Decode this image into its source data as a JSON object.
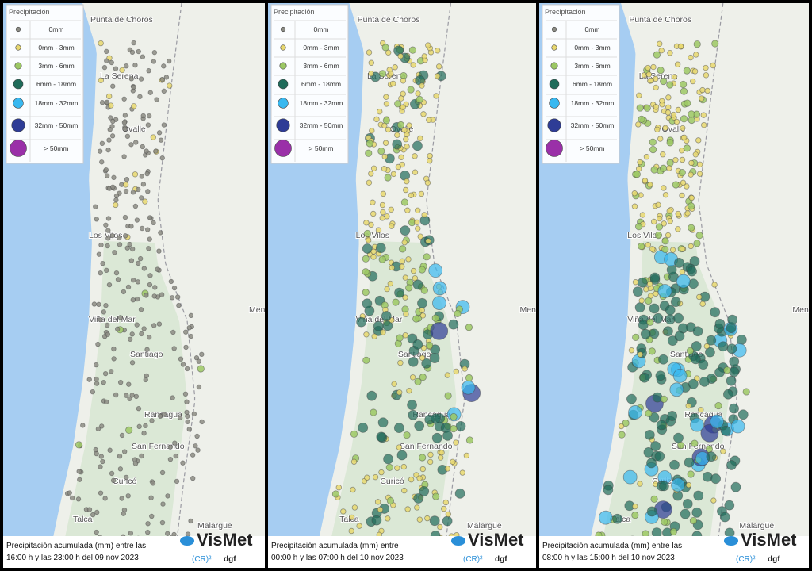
{
  "legend": {
    "title": "Precipitación",
    "items": [
      {
        "label": "0mm",
        "color": "#8c8c84"
      },
      {
        "label": "0mm - 3mm",
        "color": "#e8d870"
      },
      {
        "label": "3mm - 6mm",
        "color": "#9cc864"
      },
      {
        "label": "6mm - 18mm",
        "color": "#1f6b5a"
      },
      {
        "label": "18mm - 32mm",
        "color": "#38b8f0"
      },
      {
        "label": "32mm - 50mm",
        "color": "#2e3c96"
      },
      {
        "label": "> 50mm",
        "color": "#9a30a8"
      }
    ]
  },
  "places": [
    "Punta de Choros",
    "La Serena",
    "Ovalle",
    "Los Vilos",
    "Viña del Mar",
    "Santiago",
    "Rancagua",
    "San Fernando",
    "Curicó",
    "Talca",
    "Malargüe",
    "Mendoza"
  ],
  "panels": [
    {
      "caption_line1": "Precipitación acumulada (mm) entre las",
      "caption_line2": "16:00 h y las 23:00 h del 09 nov 2023"
    },
    {
      "caption_line1": "Precipitación acumulada (mm) entre",
      "caption_line2": "00:00 h y las 07:00 h del 10 nov 2023"
    },
    {
      "caption_line1": "Precipitación acumulada (mm) entre las",
      "caption_line2": "08:00 h y las 15:00 h del 10 nov 2023"
    }
  ],
  "logo": {
    "name": "VisMet",
    "partner1": "(CR)²",
    "partner2": "dgf"
  }
}
